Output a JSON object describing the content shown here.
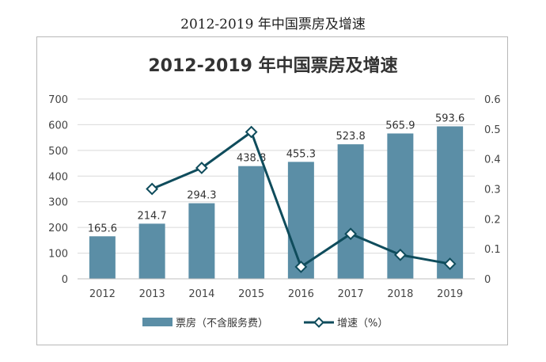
{
  "page_title": "2012-2019 年中国票房及增速",
  "colors": {
    "bar": "#5b8ea6",
    "line": "#0f4c5c",
    "marker_fill": "#ffffff",
    "grid": "#d9d9d9"
  },
  "chart_data": {
    "type": "bar",
    "title": "2012-2019 年中国票房及增速",
    "categories": [
      "2012",
      "2013",
      "2014",
      "2015",
      "2016",
      "2017",
      "2018",
      "2019"
    ],
    "series": [
      {
        "name": "票房（不含服务费）",
        "type": "bar",
        "axis": "left",
        "values": [
          165.6,
          214.7,
          294.3,
          438.8,
          455.3,
          523.8,
          565.9,
          593.6
        ],
        "labels": [
          "165.6",
          "214.7",
          "294.3",
          "438.8",
          "455.3",
          "523.8",
          "565.9",
          "593.6"
        ]
      },
      {
        "name": "增速（%）",
        "type": "line",
        "axis": "right",
        "values": [
          null,
          0.3,
          0.37,
          0.49,
          0.04,
          0.15,
          0.08,
          0.05
        ]
      }
    ],
    "ylim": [
      0,
      700
    ],
    "y_ticks": [
      "0",
      "100",
      "200",
      "300",
      "400",
      "500",
      "600",
      "700"
    ],
    "y2lim": [
      0,
      0.6
    ],
    "y2_ticks": [
      "0",
      "0.1",
      "0.2",
      "0.3",
      "0.4",
      "0.5",
      "0.6"
    ],
    "grid": true,
    "legend_position": "bottom"
  }
}
